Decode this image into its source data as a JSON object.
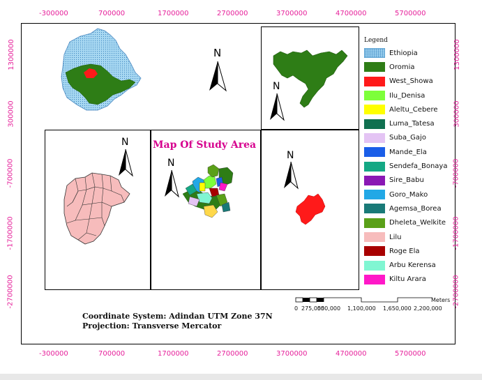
{
  "map_title": "Map Of Study Area",
  "ticks": {
    "x": [
      "-300000",
      "700000",
      "1700000",
      "2700000",
      "3700000",
      "4700000",
      "5700000"
    ],
    "y_left": [
      "1300000",
      "300000",
      "-700000",
      "-1700000",
      "-2700000"
    ],
    "y_right": [
      "1300000",
      "300000",
      "-700000",
      "-1700000",
      "-2700000"
    ]
  },
  "north_label": "N",
  "legend": {
    "title": "Legend",
    "items": [
      {
        "label": "Ethiopia",
        "color": "#9fd3f0",
        "pattern": "dotted"
      },
      {
        "label": "Oromia",
        "color": "#2e7d16"
      },
      {
        "label": "West_Showa",
        "color": "#ff1a1a"
      },
      {
        "label": "Ilu_Denisa",
        "color": "#7dff3a"
      },
      {
        "label": "Aleltu_Cebere",
        "color": "#ffff00"
      },
      {
        "label": "Luma_Tatesa",
        "color": "#107050"
      },
      {
        "label": "Suba_Gajo",
        "color": "#e4c4f4"
      },
      {
        "label": "Mande_Ela",
        "color": "#1a5ee8"
      },
      {
        "label": "Sendefa_Bonaya",
        "color": "#14a884"
      },
      {
        "label": "Sire_Babu",
        "color": "#8a18b4"
      },
      {
        "label": "Goro_Mako",
        "color": "#22a8e6"
      },
      {
        "label": "Agemsa_Borea",
        "color": "#197a78"
      },
      {
        "label": "Dheleta_Welkite",
        "color": "#5aa018"
      },
      {
        "label": "Lilu",
        "color": "#f7bcbc"
      },
      {
        "label": "Roge Ela",
        "color": "#a80000"
      },
      {
        "label": "Arbu Kerensa",
        "color": "#80f6d2"
      },
      {
        "label": "Kiltu Arara",
        "color": "#ff18c8"
      }
    ]
  },
  "coordinate_system": "Coordinate System: Adindan UTM Zone 37N",
  "projection": "Projection: Transverse Mercator",
  "scalebar": {
    "unit": "Meters",
    "labels": [
      "0",
      "275,000",
      "550,000",
      "1,100,000",
      "1,650,000",
      "2,200,000"
    ]
  },
  "colors": {
    "tick_text": "#e61f9a",
    "title": "#d6008e"
  }
}
